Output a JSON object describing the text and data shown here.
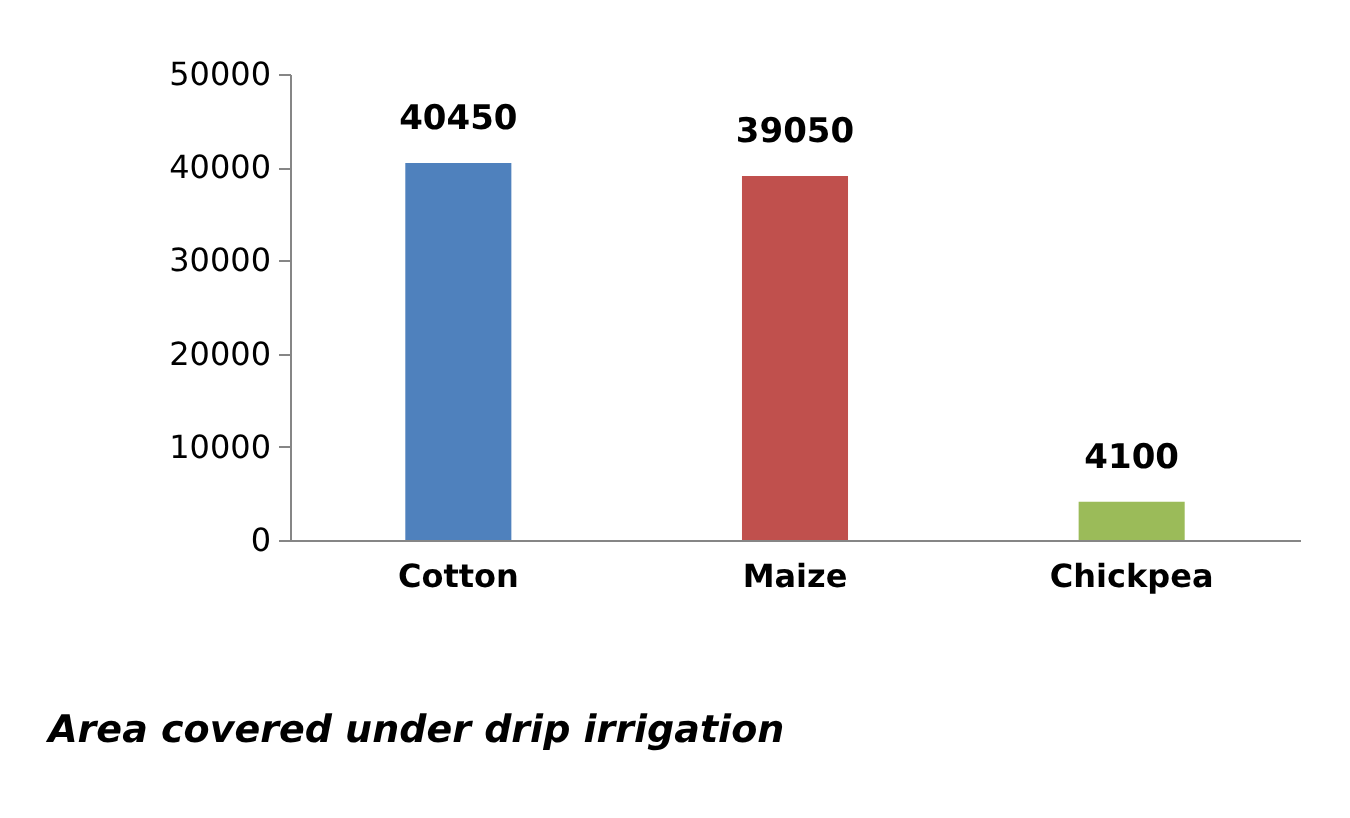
{
  "chart_data": {
    "type": "bar",
    "title": "Area covered under drip irrigation",
    "categories": [
      "Cotton",
      "Maize",
      "Chickpea"
    ],
    "values": [
      40450,
      39050,
      4100
    ],
    "colors": [
      "#4f81bd",
      "#c0504d",
      "#9bbb59"
    ],
    "ylim": [
      0,
      50000
    ],
    "yticks": [
      0,
      10000,
      20000,
      30000,
      40000,
      50000
    ],
    "grid": false,
    "legend": false,
    "data_labels": true
  }
}
